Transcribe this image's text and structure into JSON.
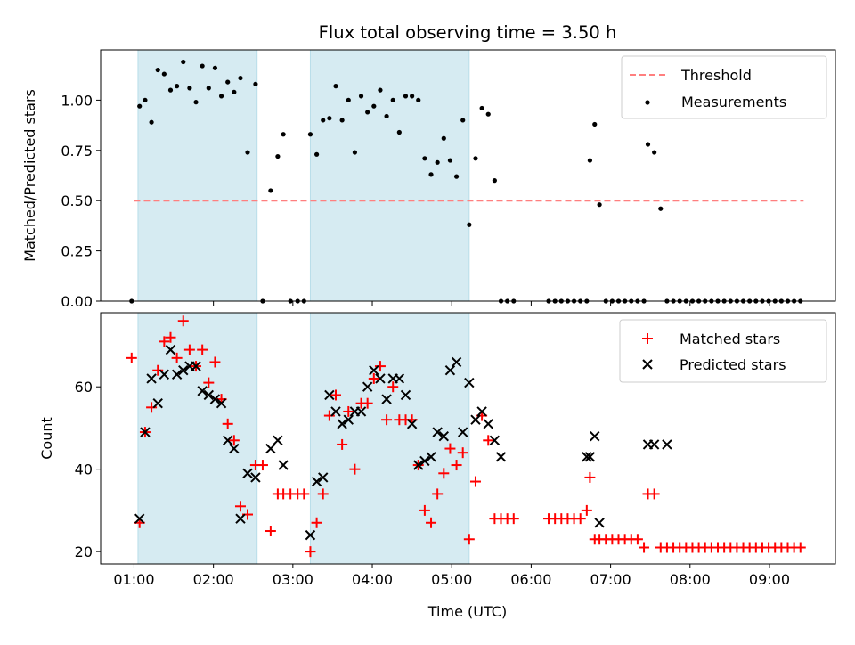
{
  "chart_data": [
    {
      "type": "scatter",
      "title": "Flux total observing time = 3.50 h",
      "xlabel": "",
      "ylabel": "Matched/Predicted stars",
      "xlim": [
        0.58,
        9.83
      ],
      "ylim": [
        0.0,
        1.25
      ],
      "yticks": [
        0.0,
        0.25,
        0.5,
        0.75,
        1.0
      ],
      "ytick_labels": [
        "0.00",
        "0.25",
        "0.50",
        "0.75",
        "1.00"
      ],
      "xticks": [
        1,
        2,
        3,
        4,
        5,
        6,
        7,
        8,
        9
      ],
      "shaded_regions": [
        [
          1.05,
          2.55
        ],
        [
          3.22,
          5.22
        ]
      ],
      "shade_color": "#add8e6",
      "threshold": {
        "name": "Threshold",
        "value": 0.5,
        "x_range": [
          1.0,
          9.43
        ],
        "color": "#ff7f7f"
      },
      "legend_position": "top-right",
      "series": [
        {
          "name": "Measurements",
          "color": "#000000",
          "marker": "dot",
          "x": [
            0.97,
            1.07,
            1.14,
            1.22,
            1.3,
            1.38,
            1.46,
            1.54,
            1.62,
            1.7,
            1.78,
            1.86,
            1.94,
            2.02,
            2.1,
            2.18,
            2.26,
            2.34,
            2.43,
            2.53,
            2.62,
            2.72,
            2.81,
            2.88,
            2.97,
            3.06,
            3.14,
            3.22,
            3.3,
            3.38,
            3.46,
            3.54,
            3.62,
            3.7,
            3.78,
            3.86,
            3.94,
            4.02,
            4.1,
            4.18,
            4.26,
            4.34,
            4.42,
            4.5,
            4.58,
            4.66,
            4.74,
            4.82,
            4.9,
            4.98,
            5.06,
            5.14,
            5.22,
            5.3,
            5.38,
            5.46,
            5.54,
            5.62,
            5.7,
            5.78,
            6.22,
            6.3,
            6.38,
            6.46,
            6.54,
            6.62,
            6.7,
            6.74,
            6.8,
            6.86,
            6.94,
            7.02,
            7.1,
            7.18,
            7.26,
            7.34,
            7.42,
            7.47,
            7.55,
            7.63,
            7.71,
            7.79,
            7.87,
            7.95,
            8.03,
            8.11,
            8.19,
            8.27,
            8.35,
            8.43,
            8.51,
            8.59,
            8.67,
            8.75,
            8.83,
            8.91,
            8.99,
            9.07,
            9.15,
            9.23,
            9.31,
            9.39
          ],
          "y": [
            0.0,
            0.97,
            1.0,
            0.89,
            1.15,
            1.13,
            1.05,
            1.07,
            1.19,
            1.06,
            0.99,
            1.17,
            1.06,
            1.16,
            1.02,
            1.09,
            1.04,
            1.11,
            0.74,
            1.08,
            0.0,
            0.55,
            0.72,
            0.83,
            0.0,
            0.0,
            0.0,
            0.83,
            0.73,
            0.9,
            0.91,
            1.07,
            0.9,
            1.0,
            0.74,
            1.02,
            0.94,
            0.97,
            1.05,
            0.92,
            1.0,
            0.84,
            1.02,
            1.02,
            1.0,
            0.71,
            0.63,
            0.69,
            0.81,
            0.7,
            0.62,
            0.9,
            0.38,
            0.71,
            0.96,
            0.93,
            0.6,
            0.0,
            0.0,
            0.0,
            0.0,
            0.0,
            0.0,
            0.0,
            0.0,
            0.0,
            0.0,
            0.7,
            0.88,
            0.48,
            0.0,
            0.0,
            0.0,
            0.0,
            0.0,
            0.0,
            0.0,
            0.78,
            0.74,
            0.46,
            0.0,
            0.0,
            0.0,
            0.0,
            0.0,
            0.0,
            0.0,
            0.0,
            0.0,
            0.0,
            0.0,
            0.0,
            0.0,
            0.0,
            0.0,
            0.0,
            0.0,
            0.0,
            0.0,
            0.0,
            0.0,
            0.0
          ]
        }
      ]
    },
    {
      "type": "scatter",
      "title": "",
      "xlabel": "Time (UTC)",
      "ylabel": "Count",
      "xlim": [
        0.58,
        9.83
      ],
      "ylim": [
        17,
        78
      ],
      "yticks": [
        20,
        40,
        60
      ],
      "xticks": [
        1,
        2,
        3,
        4,
        5,
        6,
        7,
        8,
        9
      ],
      "xtick_labels": [
        "01:00",
        "02:00",
        "03:00",
        "04:00",
        "05:00",
        "06:00",
        "07:00",
        "08:00",
        "09:00"
      ],
      "shaded_regions": [
        [
          1.05,
          2.55
        ],
        [
          3.22,
          5.22
        ]
      ],
      "shade_color": "#add8e6",
      "legend_position": "top-right",
      "series": [
        {
          "name": "Matched stars",
          "color": "#ff0000",
          "marker": "plus",
          "x": [
            0.97,
            1.07,
            1.14,
            1.22,
            1.3,
            1.38,
            1.46,
            1.54,
            1.62,
            1.7,
            1.78,
            1.86,
            1.94,
            2.02,
            2.1,
            2.18,
            2.26,
            2.34,
            2.43,
            2.53,
            2.62,
            2.72,
            2.81,
            2.88,
            2.97,
            3.06,
            3.14,
            3.22,
            3.3,
            3.38,
            3.46,
            3.54,
            3.62,
            3.7,
            3.78,
            3.86,
            3.94,
            4.02,
            4.1,
            4.18,
            4.26,
            4.34,
            4.42,
            4.5,
            4.58,
            4.66,
            4.74,
            4.82,
            4.9,
            4.98,
            5.06,
            5.14,
            5.22,
            5.3,
            5.38,
            5.46,
            5.54,
            5.62,
            5.7,
            5.78,
            6.22,
            6.3,
            6.38,
            6.46,
            6.54,
            6.62,
            6.7,
            6.74,
            6.8,
            6.86,
            6.94,
            7.02,
            7.1,
            7.18,
            7.26,
            7.34,
            7.42,
            7.47,
            7.55,
            7.63,
            7.71,
            7.79,
            7.87,
            7.95,
            8.03,
            8.11,
            8.19,
            8.27,
            8.35,
            8.43,
            8.51,
            8.59,
            8.67,
            8.75,
            8.83,
            8.91,
            8.99,
            9.07,
            9.15,
            9.23,
            9.31,
            9.39
          ],
          "y": [
            67,
            27,
            49,
            55,
            64,
            71,
            72,
            67,
            76,
            69,
            65,
            69,
            61,
            66,
            57,
            51,
            47,
            31,
            29,
            41,
            41,
            25,
            34,
            34,
            34,
            34,
            34,
            20,
            27,
            34,
            53,
            58,
            46,
            54,
            40,
            56,
            56,
            62,
            65,
            52,
            60,
            52,
            52,
            52,
            41,
            30,
            27,
            34,
            39,
            45,
            41,
            44,
            23,
            37,
            53,
            47,
            28,
            28,
            28,
            28,
            28,
            28,
            28,
            28,
            28,
            28,
            30,
            38,
            23,
            23,
            23,
            23,
            23,
            23,
            23,
            23,
            21,
            34,
            34,
            21,
            21,
            21,
            21,
            21,
            21,
            21,
            21,
            21,
            21,
            21,
            21,
            21,
            21,
            21,
            21,
            21,
            21,
            21,
            21,
            21,
            21,
            21
          ]
        },
        {
          "name": "Predicted stars",
          "color": "#000000",
          "marker": "x",
          "x": [
            1.07,
            1.14,
            1.22,
            1.3,
            1.38,
            1.46,
            1.54,
            1.62,
            1.7,
            1.78,
            1.86,
            1.94,
            2.02,
            2.1,
            2.18,
            2.26,
            2.34,
            2.43,
            2.53,
            2.72,
            2.81,
            2.88,
            3.22,
            3.3,
            3.38,
            3.46,
            3.54,
            3.62,
            3.7,
            3.78,
            3.86,
            3.94,
            4.02,
            4.1,
            4.18,
            4.26,
            4.34,
            4.42,
            4.5,
            4.58,
            4.66,
            4.74,
            4.82,
            4.9,
            4.98,
            5.06,
            5.14,
            5.22,
            5.3,
            5.38,
            5.46,
            5.54,
            5.62,
            6.7,
            6.74,
            6.8,
            6.86,
            7.47,
            7.55,
            7.71
          ],
          "y": [
            28,
            49,
            62,
            56,
            63,
            69,
            63,
            64,
            65,
            65,
            59,
            58,
            57,
            56,
            47,
            45,
            28,
            39,
            38,
            45,
            47,
            41,
            24,
            37,
            38,
            58,
            54,
            51,
            52,
            54,
            54,
            60,
            64,
            62,
            57,
            62,
            62,
            58,
            51,
            41,
            42,
            43,
            49,
            48,
            64,
            66,
            49,
            61,
            52,
            54,
            51,
            47,
            43,
            43,
            43,
            48,
            27,
            46,
            46,
            46
          ]
        }
      ]
    }
  ]
}
